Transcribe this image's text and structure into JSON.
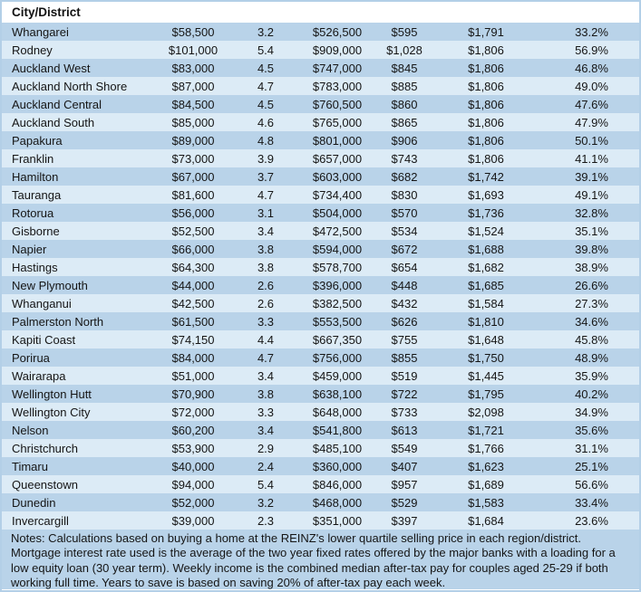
{
  "chart_data": {
    "type": "table",
    "title": "",
    "columns": [
      "City/District",
      "",
      "",
      "",
      "",
      "",
      ""
    ],
    "column_semantics": [
      "city_district",
      "deposit",
      "years",
      "house_price",
      "weekly_payment",
      "weekly_income",
      "percent_of_income"
    ],
    "rows": [
      [
        "Whangarei",
        "$58,500",
        "3.2",
        "$526,500",
        "$595",
        "$1,791",
        "33.2%"
      ],
      [
        "Rodney",
        "$101,000",
        "5.4",
        "$909,000",
        "$1,028",
        "$1,806",
        "56.9%"
      ],
      [
        "Auckland West",
        "$83,000",
        "4.5",
        "$747,000",
        "$845",
        "$1,806",
        "46.8%"
      ],
      [
        "Auckland North Shore",
        "$87,000",
        "4.7",
        "$783,000",
        "$885",
        "$1,806",
        "49.0%"
      ],
      [
        "Auckland Central",
        "$84,500",
        "4.5",
        "$760,500",
        "$860",
        "$1,806",
        "47.6%"
      ],
      [
        "Auckland South",
        "$85,000",
        "4.6",
        "$765,000",
        "$865",
        "$1,806",
        "47.9%"
      ],
      [
        "Papakura",
        "$89,000",
        "4.8",
        "$801,000",
        "$906",
        "$1,806",
        "50.1%"
      ],
      [
        "Franklin",
        "$73,000",
        "3.9",
        "$657,000",
        "$743",
        "$1,806",
        "41.1%"
      ],
      [
        "Hamilton",
        "$67,000",
        "3.7",
        "$603,000",
        "$682",
        "$1,742",
        "39.1%"
      ],
      [
        "Tauranga",
        "$81,600",
        "4.7",
        "$734,400",
        "$830",
        "$1,693",
        "49.1%"
      ],
      [
        "Rotorua",
        "$56,000",
        "3.1",
        "$504,000",
        "$570",
        "$1,736",
        "32.8%"
      ],
      [
        "Gisborne",
        "$52,500",
        "3.4",
        "$472,500",
        "$534",
        "$1,524",
        "35.1%"
      ],
      [
        "Napier",
        "$66,000",
        "3.8",
        "$594,000",
        "$672",
        "$1,688",
        "39.8%"
      ],
      [
        "Hastings",
        "$64,300",
        "3.8",
        "$578,700",
        "$654",
        "$1,682",
        "38.9%"
      ],
      [
        "New Plymouth",
        "$44,000",
        "2.6",
        "$396,000",
        "$448",
        "$1,685",
        "26.6%"
      ],
      [
        "Whanganui",
        "$42,500",
        "2.6",
        "$382,500",
        "$432",
        "$1,584",
        "27.3%"
      ],
      [
        "Palmerston North",
        "$61,500",
        "3.3",
        "$553,500",
        "$626",
        "$1,810",
        "34.6%"
      ],
      [
        "Kapiti Coast",
        "$74,150",
        "4.4",
        "$667,350",
        "$755",
        "$1,648",
        "45.8%"
      ],
      [
        "Porirua",
        "$84,000",
        "4.7",
        "$756,000",
        "$855",
        "$1,750",
        "48.9%"
      ],
      [
        "Wairarapa",
        "$51,000",
        "3.4",
        "$459,000",
        "$519",
        "$1,445",
        "35.9%"
      ],
      [
        "Wellington Hutt",
        "$70,900",
        "3.8",
        "$638,100",
        "$722",
        "$1,795",
        "40.2%"
      ],
      [
        "Wellington City",
        "$72,000",
        "3.3",
        "$648,000",
        "$733",
        "$2,098",
        "34.9%"
      ],
      [
        "Nelson",
        "$60,200",
        "3.4",
        "$541,800",
        "$613",
        "$1,721",
        "35.6%"
      ],
      [
        "Christchurch",
        "$53,900",
        "2.9",
        "$485,100",
        "$549",
        "$1,766",
        "31.1%"
      ],
      [
        "Timaru",
        "$40,000",
        "2.4",
        "$360,000",
        "$407",
        "$1,623",
        "25.1%"
      ],
      [
        "Queenstown",
        "$94,000",
        "5.4",
        "$846,000",
        "$957",
        "$1,689",
        "56.6%"
      ],
      [
        "Dunedin",
        "$52,000",
        "3.2",
        "$468,000",
        "$529",
        "$1,583",
        "33.4%"
      ],
      [
        "Invercargill",
        "$39,000",
        "2.3",
        "$351,000",
        "$397",
        "$1,684",
        "23.6%"
      ]
    ],
    "layout": {
      "row_banding": true,
      "band_color_odd": "#b9d3e9",
      "band_color_even": "#dcebf6",
      "header_background": "#ffffff",
      "border_color": "#b3cfe7"
    }
  },
  "notes": "Notes: Calculations based on buying a home at the REINZ's lower quartile selling price in each region/district. Mortgage interest rate used is the average of the two year fixed rates offered by the major banks with a loading for a low equity loan (30 year term). Weekly income is the combined median after-tax pay for couples aged 25-29 if both working full time. Years to save is based on saving 20% of after-tax pay each week.",
  "colors": {
    "row_odd": "#b9d3e9",
    "row_even": "#dcebf6",
    "header_bg": "#ffffff",
    "text": "#151515",
    "border": "#b3cfe7"
  }
}
